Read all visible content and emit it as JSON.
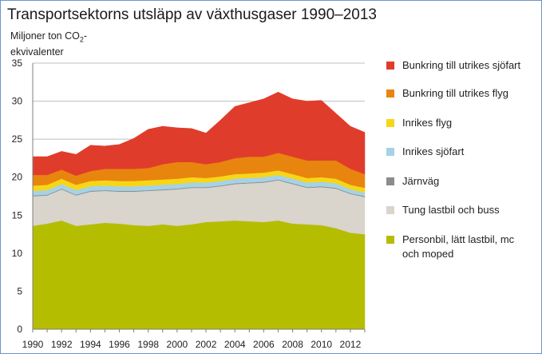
{
  "chart_data": {
    "type": "area",
    "stacked": true,
    "title": "Transportsektorns utsläpp av växthusgaser 1990–2013",
    "ylabel_line1": "Miljoner ton CO",
    "ylabel_sub": "2",
    "ylabel_suffix": "-",
    "ylabel_line2": "ekvivalenter",
    "ylim": [
      0,
      35
    ],
    "yticks": [
      "0",
      "5",
      "10",
      "15",
      "20",
      "25",
      "30",
      "35"
    ],
    "xlim": [
      1990,
      2013
    ],
    "xticks": [
      "1990",
      "1992",
      "1994",
      "1996",
      "1998",
      "2000",
      "2002",
      "2004",
      "2006",
      "2008",
      "2010",
      "2012"
    ],
    "grid": true,
    "legend_position": "right",
    "x": [
      1990,
      1991,
      1992,
      1993,
      1994,
      1995,
      1996,
      1997,
      1998,
      1999,
      2000,
      2001,
      2002,
      2003,
      2004,
      2005,
      2006,
      2007,
      2008,
      2009,
      2010,
      2011,
      2012,
      2013
    ],
    "series": [
      {
        "name": "Personbil, lätt lastbil, mc och moped",
        "label_lines": [
          "Personbil, lätt lastbil, mc",
          "och moped"
        ],
        "color": "#b5bd00",
        "values": [
          13.6,
          13.9,
          14.3,
          13.6,
          13.8,
          14.0,
          13.9,
          13.7,
          13.6,
          13.8,
          13.6,
          13.8,
          14.1,
          14.2,
          14.3,
          14.2,
          14.1,
          14.3,
          13.9,
          13.8,
          13.7,
          13.3,
          12.7,
          12.5
        ]
      },
      {
        "name": "Tung lastbil och buss",
        "label_lines": [
          "Tung lastbil och buss"
        ],
        "color": "#d9d4cc",
        "values": [
          3.9,
          3.7,
          4.1,
          4.0,
          4.3,
          4.2,
          4.2,
          4.4,
          4.6,
          4.5,
          4.8,
          4.8,
          4.5,
          4.6,
          4.8,
          5.0,
          5.2,
          5.3,
          5.2,
          4.8,
          5.0,
          5.2,
          5.1,
          4.9
        ]
      },
      {
        "name": "Järnväg",
        "label_lines": [
          "Järnväg"
        ],
        "color": "#8c8c8c",
        "values": [
          0.1,
          0.1,
          0.1,
          0.1,
          0.1,
          0.1,
          0.1,
          0.1,
          0.1,
          0.1,
          0.1,
          0.1,
          0.1,
          0.1,
          0.1,
          0.1,
          0.1,
          0.1,
          0.1,
          0.1,
          0.1,
          0.1,
          0.1,
          0.1
        ]
      },
      {
        "name": "Inrikes sjöfart",
        "label_lines": [
          "Inrikes sjöfart"
        ],
        "color": "#a5d2e6",
        "values": [
          0.6,
          0.6,
          0.6,
          0.6,
          0.6,
          0.6,
          0.6,
          0.6,
          0.6,
          0.6,
          0.6,
          0.6,
          0.6,
          0.6,
          0.6,
          0.6,
          0.6,
          0.6,
          0.6,
          0.6,
          0.6,
          0.6,
          0.5,
          0.5
        ]
      },
      {
        "name": "Inrikes flyg",
        "label_lines": [
          "Inrikes flyg"
        ],
        "color": "#f7d618",
        "values": [
          0.7,
          0.7,
          0.7,
          0.7,
          0.7,
          0.7,
          0.7,
          0.7,
          0.7,
          0.7,
          0.7,
          0.7,
          0.6,
          0.6,
          0.6,
          0.6,
          0.6,
          0.6,
          0.6,
          0.6,
          0.6,
          0.6,
          0.6,
          0.6
        ]
      },
      {
        "name": "Bunkring till utrikes flyg",
        "label_lines": [
          "Bunkring till utrikes flyg"
        ],
        "color": "#e8850e",
        "values": [
          1.4,
          1.3,
          1.2,
          1.2,
          1.3,
          1.5,
          1.6,
          1.6,
          1.6,
          2.0,
          2.2,
          2.0,
          1.8,
          1.9,
          2.1,
          2.2,
          2.1,
          2.3,
          2.3,
          2.3,
          2.2,
          2.4,
          2.1,
          1.8
        ]
      },
      {
        "name": "Bunkring till utrikes sjöfart",
        "label_lines": [
          "Bunkring till utrikes sjöfart"
        ],
        "color": "#e03c2b",
        "values": [
          2.4,
          2.4,
          2.4,
          2.8,
          3.4,
          3.0,
          3.2,
          4.0,
          5.1,
          5.0,
          4.5,
          4.4,
          4.1,
          5.5,
          6.8,
          7.1,
          7.6,
          8.0,
          7.6,
          7.8,
          7.9,
          6.2,
          5.6,
          5.5
        ]
      }
    ],
    "legend_order": [
      6,
      5,
      4,
      3,
      2,
      1,
      0
    ]
  }
}
